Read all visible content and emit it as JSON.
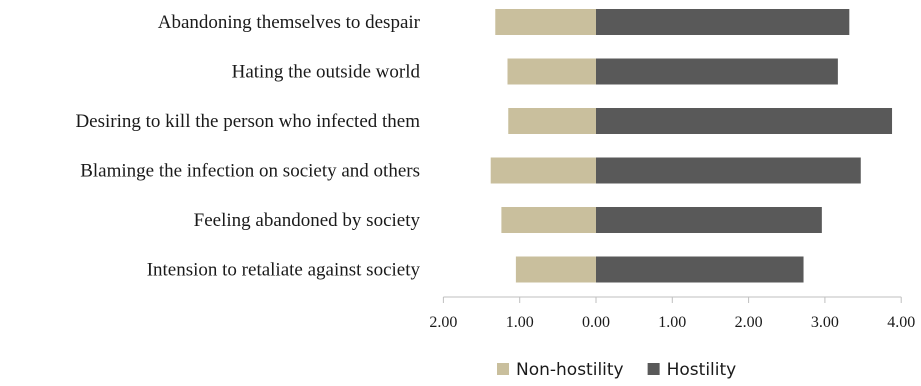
{
  "chart_data": {
    "type": "bar",
    "orientation": "horizontal",
    "style": "diverging",
    "categories": [
      "Abandoning themselves to despair",
      "Hating the outside world",
      "Desiring to kill the person who infected them",
      "Blaminge the infection on society and others",
      "Feeling abandoned by society",
      "Intension to retaliate against society"
    ],
    "series": [
      {
        "name": "Non-hostility",
        "color": "#c9bf9d",
        "direction": "left",
        "values": [
          1.32,
          1.16,
          1.15,
          1.38,
          1.24,
          1.05
        ]
      },
      {
        "name": "Hostility",
        "color": "#595959",
        "direction": "right",
        "values": [
          3.32,
          3.17,
          3.88,
          3.47,
          2.96,
          2.72
        ]
      }
    ],
    "xlim": [
      -2,
      4
    ],
    "ticks": [
      "2.00",
      "1.00",
      "0.00",
      "1.00",
      "2.00",
      "3.00",
      "4.00"
    ],
    "grid": false,
    "legend": "bottom-center",
    "title": "",
    "xlabel": "",
    "ylabel": ""
  }
}
